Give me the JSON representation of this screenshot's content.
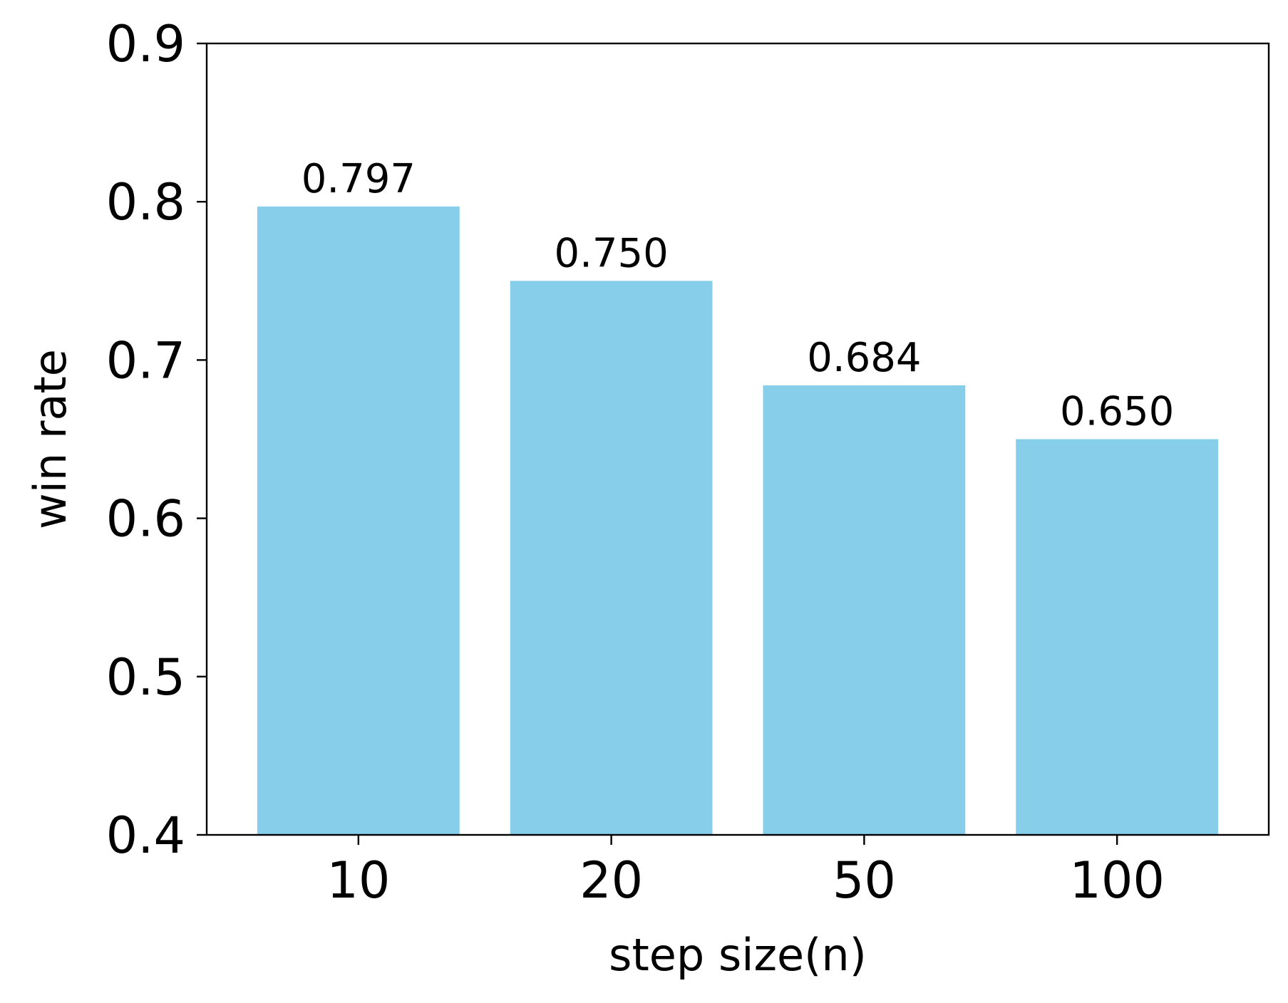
{
  "chart_data": {
    "type": "bar",
    "categories": [
      "10",
      "20",
      "50",
      "100"
    ],
    "values": [
      0.797,
      0.75,
      0.684,
      0.65
    ],
    "value_labels": [
      "0.797",
      "0.750",
      "0.684",
      "0.650"
    ],
    "title": "",
    "xlabel": "step size(n)",
    "ylabel": "win rate",
    "ylim": [
      0.4,
      0.9
    ],
    "yticks": [
      0.4,
      0.5,
      0.6,
      0.7,
      0.8,
      0.9
    ],
    "ytick_labels": [
      "0.4",
      "0.5",
      "0.6",
      "0.7",
      "0.8",
      "0.9"
    ],
    "grid": false,
    "bar_color": "#87CEEB"
  }
}
